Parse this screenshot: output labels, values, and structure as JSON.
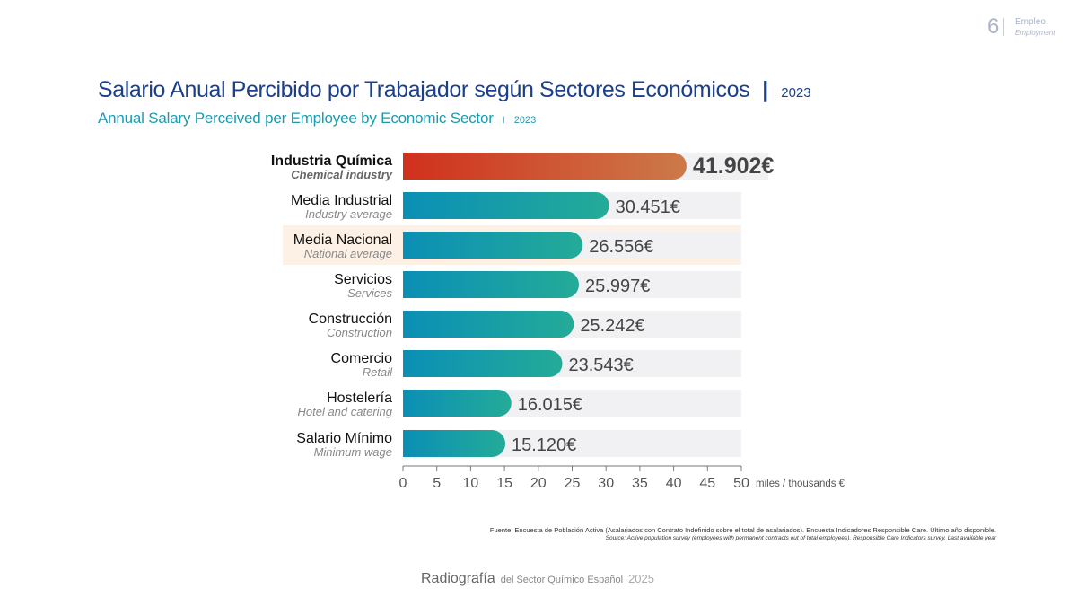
{
  "header": {
    "page_number": "6",
    "section": "Empleo",
    "section_en": "Employment"
  },
  "title": "Salario Anual Percibido por Trabajador según Sectores Económicos",
  "title_separator": "|",
  "title_year": "2023",
  "subtitle": "Annual Salary Perceived per Employee by Economic Sector",
  "subtitle_separator": "I",
  "subtitle_year": "2023",
  "chart_data": {
    "type": "bar",
    "orientation": "horizontal",
    "categories": [
      "Industria Química",
      "Media Industrial",
      "Media Nacional",
      "Servicios",
      "Construcción",
      "Comercio",
      "Hostelería",
      "Salario Mínimo"
    ],
    "categories_en": [
      "Chemical industry",
      "Industry average",
      "National average",
      "Services",
      "Construction",
      "Retail",
      "Hotel and catering",
      "Minimum wage"
    ],
    "values": [
      41.902,
      30.451,
      26.556,
      25.997,
      25.242,
      23.543,
      16.015,
      15.12
    ],
    "data_labels": [
      "41.902€",
      "30.451€",
      "26.556€",
      "25.997€",
      "25.242€",
      "23.543€",
      "16.015€",
      "15.120€"
    ],
    "xlim": [
      0,
      50
    ],
    "xticks": [
      "0",
      "5",
      "10",
      "15",
      "20",
      "25",
      "30",
      "35",
      "40",
      "45",
      "50"
    ],
    "xlabel": "miles / thousands €",
    "highlight_category": "Industria Química",
    "reference_category": "Media Nacional",
    "grid": false,
    "colors": {
      "highlight_start": "#d0301c",
      "highlight_end": "#cc7a4a",
      "bar_start": "#0a8fb5",
      "bar_end": "#24ab98",
      "track": "#f1f1f3",
      "reference_bg": "#fcf1e4"
    }
  },
  "source": "Fuente: Encuesta de Población Activa (Asalariados con Contrato Indefinido sobre el total de asalariados). Encuesta Indicadores Responsible Care. Último año disponible.",
  "source_en": "Source: Active population survey (employees with permanent contracts out of total employees). Responsible Care Indicators survey. Last available year",
  "footer": {
    "brand": "Radiografía",
    "text": "del Sector Químico Español",
    "year": "2025"
  }
}
